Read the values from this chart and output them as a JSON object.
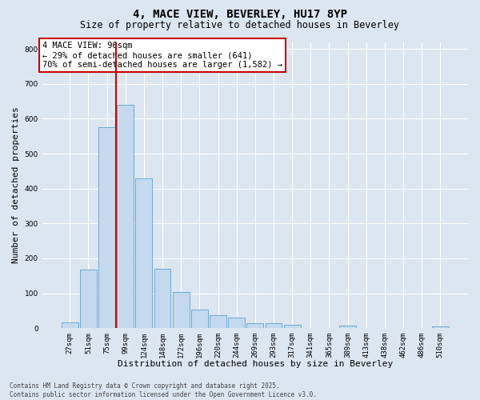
{
  "title_line1": "4, MACE VIEW, BEVERLEY, HU17 8YP",
  "title_line2": "Size of property relative to detached houses in Beverley",
  "xlabel": "Distribution of detached houses by size in Beverley",
  "ylabel": "Number of detached properties",
  "categories": [
    "27sqm",
    "51sqm",
    "75sqm",
    "99sqm",
    "124sqm",
    "148sqm",
    "172sqm",
    "196sqm",
    "220sqm",
    "244sqm",
    "269sqm",
    "293sqm",
    "317sqm",
    "341sqm",
    "365sqm",
    "389sqm",
    "413sqm",
    "438sqm",
    "462sqm",
    "486sqm",
    "510sqm"
  ],
  "values": [
    17,
    168,
    575,
    641,
    430,
    170,
    104,
    52,
    38,
    29,
    13,
    13,
    9,
    0,
    0,
    6,
    0,
    0,
    0,
    0,
    5
  ],
  "bar_color": "#c5d9ee",
  "bar_edge_color": "#6aaad4",
  "vline_index": 3,
  "vline_color": "#cc0000",
  "annotation_text": "4 MACE VIEW: 96sqm\n← 29% of detached houses are smaller (641)\n70% of semi-detached houses are larger (1,582) →",
  "annotation_box_facecolor": "#ffffff",
  "annotation_box_edgecolor": "#cc0000",
  "ylim": [
    0,
    820
  ],
  "yticks": [
    0,
    100,
    200,
    300,
    400,
    500,
    600,
    700,
    800
  ],
  "bg_color": "#dce6f1",
  "grid_color": "#ffffff",
  "footer_line1": "Contains HM Land Registry data © Crown copyright and database right 2025.",
  "footer_line2": "Contains public sector information licensed under the Open Government Licence v3.0.",
  "title_fontsize": 10,
  "subtitle_fontsize": 8.5,
  "ylabel_fontsize": 8,
  "xlabel_fontsize": 8,
  "tick_fontsize": 6.5,
  "annotation_fontsize": 7.5,
  "footer_fontsize": 5.5
}
